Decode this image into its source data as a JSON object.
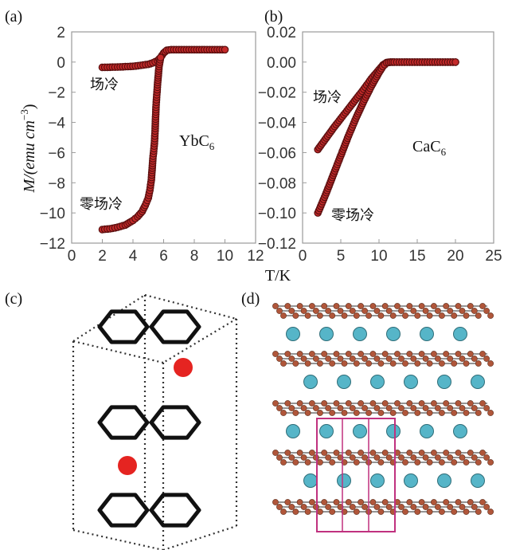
{
  "figure": {
    "panel_labels": [
      "(a)",
      "(b)",
      "(c)",
      "(d)"
    ],
    "y_axis_label": {
      "main": "M/(emu cm",
      "sup": "−3",
      "close": ")"
    },
    "x_axis_label": "T/K"
  },
  "chart_data": [
    {
      "type": "scatter",
      "panel": "(a)",
      "compound": {
        "base": "YbC",
        "sub": "6"
      },
      "xlim": [
        0,
        12
      ],
      "ylim": [
        -12,
        2
      ],
      "xticks": [
        "0",
        "2",
        "4",
        "6",
        "8",
        "10",
        "12"
      ],
      "yticks": [
        "2",
        "0",
        "−2",
        "−4",
        "−6",
        "−8",
        "−10",
        "−12"
      ],
      "xtick_values": [
        0,
        2,
        4,
        6,
        8,
        10,
        12
      ],
      "ytick_values": [
        2,
        0,
        -2,
        -4,
        -6,
        -8,
        -10,
        -12
      ],
      "series": [
        {
          "name": "场冷",
          "label": "场冷",
          "x": [
            2,
            3,
            4,
            4.5,
            5,
            5.3,
            5.6,
            5.8,
            6,
            6.2,
            6.5,
            7,
            8,
            9,
            10
          ],
          "y": [
            -0.35,
            -0.33,
            -0.28,
            -0.22,
            -0.15,
            -0.05,
            0.1,
            0.3,
            0.6,
            0.78,
            0.82,
            0.82,
            0.82,
            0.82,
            0.82
          ]
        },
        {
          "name": "零场冷",
          "label": "零场冷",
          "x": [
            2,
            2.5,
            3,
            3.5,
            4,
            4.3,
            4.6,
            4.8,
            5,
            5.1,
            5.2,
            5.3,
            5.4,
            5.45,
            5.5,
            5.6,
            5.7,
            5.8
          ],
          "y": [
            -11.1,
            -11.05,
            -10.95,
            -10.8,
            -10.5,
            -10.25,
            -9.9,
            -9.5,
            -9.0,
            -8.5,
            -7.8,
            -6.4,
            -5.4,
            -4.4,
            -3.0,
            -1.5,
            -0.3,
            0.3
          ]
        }
      ]
    },
    {
      "type": "scatter",
      "panel": "(b)",
      "compound": {
        "base": "CaC",
        "sub": "6"
      },
      "xlim": [
        0,
        25
      ],
      "ylim": [
        -0.12,
        0.02
      ],
      "xticks": [
        "0",
        "5",
        "10",
        "15",
        "20",
        "25"
      ],
      "yticks": [
        "0.02",
        "0.00",
        "−0.02",
        "−0.04",
        "−0.06",
        "−0.08",
        "−0.10",
        "−0.12"
      ],
      "xtick_values": [
        0,
        5,
        10,
        15,
        20,
        25
      ],
      "ytick_values": [
        0.02,
        0,
        -0.02,
        -0.04,
        -0.06,
        -0.08,
        -0.1,
        -0.12
      ],
      "series": [
        {
          "name": "场冷",
          "label": "场冷",
          "x": [
            2,
            4,
            6,
            8,
            9,
            10,
            10.5,
            11,
            11.5,
            12,
            14,
            16,
            18,
            20
          ],
          "y": [
            -0.058,
            -0.044,
            -0.031,
            -0.018,
            -0.011,
            -0.005,
            -0.002,
            -0.0003,
            0,
            0,
            0,
            0,
            0,
            0
          ]
        },
        {
          "name": "零场冷",
          "label": "零场冷",
          "x": [
            2,
            3,
            4,
            5,
            6,
            7,
            8,
            9,
            10,
            10.5,
            11,
            11.5,
            12,
            14,
            16,
            18,
            20
          ],
          "y": [
            -0.1,
            -0.088,
            -0.075,
            -0.062,
            -0.049,
            -0.037,
            -0.026,
            -0.016,
            -0.007,
            -0.003,
            -0.0005,
            0,
            0,
            0,
            0,
            0,
            0
          ]
        }
      ]
    }
  ],
  "colors": {
    "marker_fill": "#c42a2a",
    "marker_dark": "#5a0f0f",
    "atom_red": "#e52421",
    "hexagon": "#111111",
    "dotted_box": "#333333",
    "ca_atom": "#56b5c8",
    "c_atom": "#b0563a",
    "unit_cell": "#c0317f"
  }
}
